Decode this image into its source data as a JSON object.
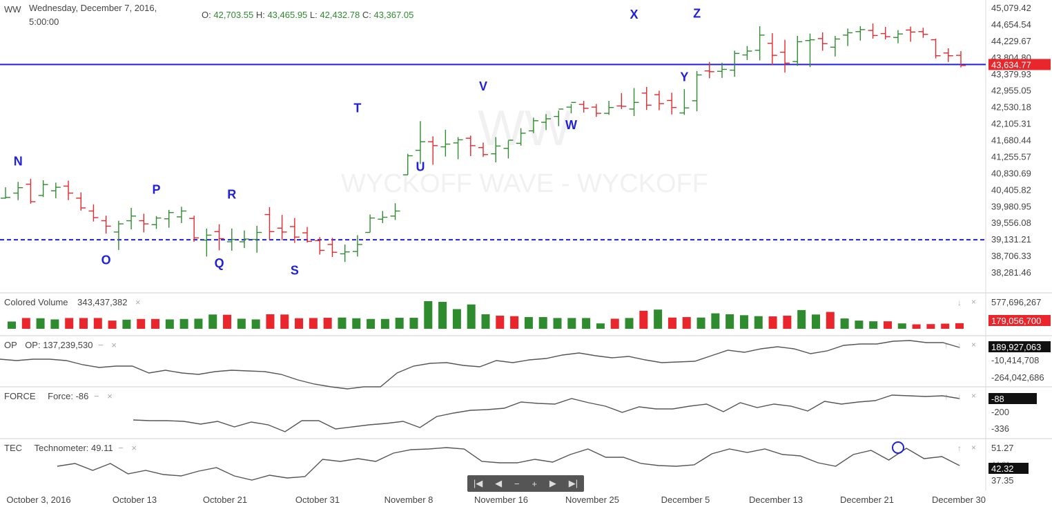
{
  "header": {
    "symbol": "WW",
    "date_line1": "Wednesday, December 7, 2016,",
    "date_line2": "5:00:00",
    "o_label": "O:",
    "o_value": "42,703.55",
    "h_label": "H:",
    "h_value": "43,465.95",
    "l_label": "L:",
    "l_value": "42,432.78",
    "c_label": "C:",
    "c_value": "43,367.05"
  },
  "watermark": {
    "line1": "WW",
    "line2": "WYCKOFF WAVE - WYCKOFF"
  },
  "colors": {
    "up": "#2e8b2e",
    "down": "#e8262b",
    "line": "#1f1fe0",
    "series": "#555555",
    "label_bg": "#e8262b"
  },
  "chart_data": [
    {
      "type": "ohlc",
      "title": "",
      "price_axis_ticks": [
        "45,079.42",
        "44,654.54",
        "44,229.67",
        "43,804.80",
        "43,379.93",
        "42,955.05",
        "42,530.18",
        "42,105.31",
        "41,680.44",
        "41,255.57",
        "40,830.69",
        "40,405.82",
        "39,980.95",
        "39,556.08",
        "39,131.21",
        "38,706.33",
        "38,281.46"
      ],
      "ylim": [
        38000,
        45200
      ],
      "current_price_label": "43,634.77",
      "resistance_line": 43634.77,
      "support_line": 39131.21,
      "wave_labels": [
        {
          "text": "N",
          "bar": 1,
          "price": 41040
        },
        {
          "text": "O",
          "bar": 8,
          "price": 38500
        },
        {
          "text": "P",
          "bar": 12,
          "price": 40310
        },
        {
          "text": "Q",
          "bar": 17,
          "price": 38420
        },
        {
          "text": "R",
          "bar": 18,
          "price": 40190
        },
        {
          "text": "S",
          "bar": 23,
          "price": 38240
        },
        {
          "text": "T",
          "bar": 28,
          "price": 42410
        },
        {
          "text": "U",
          "bar": 33,
          "price": 40900
        },
        {
          "text": "V",
          "bar": 38,
          "price": 42970
        },
        {
          "text": "W",
          "bar": 45,
          "price": 41970
        },
        {
          "text": "X",
          "bar": 50,
          "price": 44810
        },
        {
          "text": "Y",
          "bar": 54,
          "price": 43210
        },
        {
          "text": "Z",
          "bar": 55,
          "price": 44840
        }
      ],
      "bars": [
        {
          "o": 40200,
          "h": 40480,
          "l": 40190,
          "c": 40220
        },
        {
          "o": 40330,
          "h": 40620,
          "l": 40150,
          "c": 40470
        },
        {
          "o": 40560,
          "h": 40700,
          "l": 40060,
          "c": 40110
        },
        {
          "o": 40270,
          "h": 40660,
          "l": 40230,
          "c": 40550
        },
        {
          "o": 40390,
          "h": 40600,
          "l": 40200,
          "c": 40480
        },
        {
          "o": 40510,
          "h": 40650,
          "l": 40150,
          "c": 40330
        },
        {
          "o": 40200,
          "h": 40350,
          "l": 39880,
          "c": 39950
        },
        {
          "o": 39870,
          "h": 40040,
          "l": 39600,
          "c": 39700
        },
        {
          "o": 39620,
          "h": 39750,
          "l": 39290,
          "c": 39480
        },
        {
          "o": 39330,
          "h": 39620,
          "l": 38870,
          "c": 39540
        },
        {
          "o": 39620,
          "h": 39950,
          "l": 39400,
          "c": 39740
        },
        {
          "o": 39620,
          "h": 39800,
          "l": 39320,
          "c": 39540
        },
        {
          "o": 39520,
          "h": 39740,
          "l": 39410,
          "c": 39690
        },
        {
          "o": 39670,
          "h": 39900,
          "l": 39440,
          "c": 39830
        },
        {
          "o": 39720,
          "h": 39980,
          "l": 39560,
          "c": 39870
        },
        {
          "o": 39680,
          "h": 39750,
          "l": 39080,
          "c": 39180
        },
        {
          "o": 39120,
          "h": 39420,
          "l": 38700,
          "c": 39250
        },
        {
          "o": 39340,
          "h": 39530,
          "l": 38860,
          "c": 39160
        },
        {
          "o": 39080,
          "h": 39420,
          "l": 38850,
          "c": 39140
        },
        {
          "o": 39080,
          "h": 39370,
          "l": 38920,
          "c": 39150
        },
        {
          "o": 39140,
          "h": 39490,
          "l": 38800,
          "c": 39320
        },
        {
          "o": 39780,
          "h": 39970,
          "l": 39130,
          "c": 39340
        },
        {
          "o": 39430,
          "h": 39770,
          "l": 39120,
          "c": 39330
        },
        {
          "o": 39470,
          "h": 39690,
          "l": 39050,
          "c": 39200
        },
        {
          "o": 39310,
          "h": 39460,
          "l": 39060,
          "c": 39090
        },
        {
          "o": 39110,
          "h": 39200,
          "l": 38750,
          "c": 38860
        },
        {
          "o": 39010,
          "h": 39180,
          "l": 38690,
          "c": 38810
        },
        {
          "o": 38770,
          "h": 39010,
          "l": 38560,
          "c": 38820
        },
        {
          "o": 38830,
          "h": 39250,
          "l": 38700,
          "c": 39010
        },
        {
          "o": 39320,
          "h": 39780,
          "l": 39320,
          "c": 39690
        },
        {
          "o": 39660,
          "h": 39870,
          "l": 39560,
          "c": 39710
        },
        {
          "o": 39740,
          "h": 40070,
          "l": 39640,
          "c": 39870
        },
        {
          "o": 40800,
          "h": 41340,
          "l": 40800,
          "c": 41290
        },
        {
          "o": 41430,
          "h": 42180,
          "l": 41080,
          "c": 41650
        },
        {
          "o": 41650,
          "h": 41790,
          "l": 41060,
          "c": 41550
        },
        {
          "o": 41520,
          "h": 41960,
          "l": 41270,
          "c": 41590
        },
        {
          "o": 41620,
          "h": 41770,
          "l": 41200,
          "c": 41700
        },
        {
          "o": 41740,
          "h": 41810,
          "l": 41280,
          "c": 41550
        },
        {
          "o": 41500,
          "h": 41630,
          "l": 41260,
          "c": 41320
        },
        {
          "o": 41340,
          "h": 41770,
          "l": 41120,
          "c": 41540
        },
        {
          "o": 41480,
          "h": 41680,
          "l": 41220,
          "c": 41690
        },
        {
          "o": 41610,
          "h": 42000,
          "l": 41550,
          "c": 41870
        },
        {
          "o": 41930,
          "h": 42270,
          "l": 41870,
          "c": 42190
        },
        {
          "o": 42150,
          "h": 42360,
          "l": 41950,
          "c": 42240
        },
        {
          "o": 42300,
          "h": 42450,
          "l": 42050,
          "c": 42490
        },
        {
          "o": 42540,
          "h": 42620,
          "l": 42380,
          "c": 42660
        },
        {
          "o": 42610,
          "h": 42700,
          "l": 42400,
          "c": 42510
        },
        {
          "o": 42540,
          "h": 42620,
          "l": 42290,
          "c": 42380
        },
        {
          "o": 42380,
          "h": 42700,
          "l": 42340,
          "c": 42530
        },
        {
          "o": 42570,
          "h": 42900,
          "l": 42490,
          "c": 42560
        },
        {
          "o": 42490,
          "h": 43030,
          "l": 42310,
          "c": 42660
        },
        {
          "o": 42900,
          "h": 43060,
          "l": 42470,
          "c": 42590
        },
        {
          "o": 42860,
          "h": 42960,
          "l": 42460,
          "c": 42630
        },
        {
          "o": 42710,
          "h": 42910,
          "l": 42350,
          "c": 42530
        },
        {
          "o": 42390,
          "h": 43000,
          "l": 42340,
          "c": 42520
        },
        {
          "o": 42703.55,
          "h": 43465.95,
          "l": 42432.78,
          "c": 43367.05
        },
        {
          "o": 43470,
          "h": 43700,
          "l": 43280,
          "c": 43450
        },
        {
          "o": 43460,
          "h": 43680,
          "l": 43290,
          "c": 43510
        },
        {
          "o": 43490,
          "h": 43990,
          "l": 43320,
          "c": 43920
        },
        {
          "o": 43880,
          "h": 44110,
          "l": 43750,
          "c": 43980
        },
        {
          "o": 44000,
          "h": 44620,
          "l": 43740,
          "c": 44390
        },
        {
          "o": 44180,
          "h": 44440,
          "l": 43620,
          "c": 43870
        },
        {
          "o": 43950,
          "h": 44270,
          "l": 43430,
          "c": 43670
        },
        {
          "o": 43710,
          "h": 44370,
          "l": 43600,
          "c": 44220
        },
        {
          "o": 44250,
          "h": 44430,
          "l": 43570,
          "c": 44270
        },
        {
          "o": 44300,
          "h": 44460,
          "l": 43990,
          "c": 44170
        },
        {
          "o": 44080,
          "h": 44370,
          "l": 43840,
          "c": 44290
        },
        {
          "o": 44390,
          "h": 44560,
          "l": 44110,
          "c": 44450
        },
        {
          "o": 44480,
          "h": 44620,
          "l": 44250,
          "c": 44530
        },
        {
          "o": 44510,
          "h": 44690,
          "l": 44300,
          "c": 44380
        },
        {
          "o": 44430,
          "h": 44600,
          "l": 44280,
          "c": 44350
        },
        {
          "o": 44330,
          "h": 44520,
          "l": 44180,
          "c": 44420
        },
        {
          "o": 44520,
          "h": 44610,
          "l": 44220,
          "c": 44470
        },
        {
          "o": 44480,
          "h": 44580,
          "l": 44320,
          "c": 44410
        },
        {
          "o": 44270,
          "h": 44300,
          "l": 43790,
          "c": 43860
        },
        {
          "o": 43930,
          "h": 44050,
          "l": 43700,
          "c": 43860
        },
        {
          "o": 43870,
          "h": 43980,
          "l": 43560,
          "c": 43610
        }
      ]
    },
    {
      "type": "bar",
      "title": "Colored Volume",
      "value_label": "343,437,382",
      "axis_top_label": "577,696,267",
      "last_value_label": "179,056,700",
      "ylim": [
        0,
        577696267
      ],
      "values": [
        155,
        230,
        225,
        200,
        230,
        230,
        230,
        175,
        195,
        210,
        210,
        200,
        210,
        215,
        305,
        300,
        215,
        200,
        310,
        305,
        225,
        230,
        235,
        240,
        225,
        210,
        210,
        235,
        235,
        590,
        575,
        420,
        520,
        310,
        280,
        270,
        250,
        250,
        230,
        230,
        230,
        115,
        215,
        230,
        385,
        410,
        240,
        250,
        240,
        330,
        310,
        290,
        270,
        265,
        280,
        400,
        305,
        360,
        220,
        175,
        160,
        160,
        115,
        95,
        100,
        110,
        120
      ],
      "up_down": [
        1,
        0,
        1,
        1,
        0,
        0,
        0,
        0,
        1,
        0,
        0,
        1,
        1,
        1,
        1,
        0,
        1,
        1,
        0,
        0,
        0,
        0,
        0,
        1,
        1,
        1,
        1,
        1,
        1,
        1,
        1,
        1,
        1,
        1,
        0,
        0,
        1,
        1,
        1,
        1,
        1,
        1,
        0,
        1,
        0,
        1,
        0,
        0,
        1,
        1,
        1,
        1,
        1,
        0,
        0,
        1,
        1,
        0,
        1,
        1,
        1,
        0,
        1,
        0,
        0,
        0,
        0
      ]
    },
    {
      "type": "line",
      "title": "OP",
      "series_name": "OP",
      "value_label": "OP: 137,239,530",
      "axis_labels": [
        "-10,414,708",
        "-264,042,686"
      ],
      "last_value_label": "189,927,063",
      "values": [
        520,
        522,
        520,
        520,
        522,
        528,
        532,
        530,
        530,
        540,
        536,
        540,
        542,
        538,
        536,
        537,
        538,
        542,
        550,
        556,
        560,
        563,
        560,
        560,
        540,
        530,
        526,
        525,
        529,
        531,
        522,
        525,
        521,
        519,
        514,
        511,
        515,
        518,
        516,
        521,
        525,
        524,
        523,
        515,
        507,
        510,
        505,
        502,
        505,
        512,
        508,
        500,
        498,
        498,
        494,
        493,
        496,
        496,
        503
      ]
    },
    {
      "type": "line",
      "title": "FORCE",
      "series_name": "Force",
      "value_label": "Force: -86",
      "axis_labels": [
        "-200",
        "-336"
      ],
      "last_value_label": "-88",
      "values": [
        608,
        609,
        609,
        610,
        614,
        610,
        618,
        611,
        615,
        625,
        609,
        609,
        621,
        618,
        615,
        613,
        610,
        619,
        603,
        598,
        594,
        593,
        591,
        582,
        584,
        585,
        577,
        583,
        588,
        597,
        589,
        592,
        592,
        588,
        585,
        596,
        583,
        590,
        585,
        588,
        595,
        581,
        585,
        582,
        580,
        572,
        573,
        574,
        573,
        577
      ]
    },
    {
      "type": "line",
      "title": "TEC",
      "series_name": "Technometer",
      "value_label": "Technometer: 49.11",
      "axis_labels": [
        "51.27",
        "44.81",
        "37.35"
      ],
      "last_value_label": "42.32",
      "values": [
        675,
        671,
        681,
        671,
        686,
        681,
        687,
        689,
        682,
        677,
        689,
        695,
        688,
        692,
        690,
        665,
        668,
        664,
        668,
        656,
        651,
        650,
        648,
        650,
        668,
        670,
        670,
        665,
        669,
        658,
        650,
        662,
        662,
        671,
        674,
        675,
        673,
        657,
        650,
        655,
        650,
        658,
        660,
        670,
        675,
        658,
        652,
        666,
        649,
        664,
        661,
        674
      ]
    }
  ],
  "x_axis_labels": [
    "October 3, 2016",
    "October 13",
    "October 21",
    "October 31",
    "November 8",
    "November 16",
    "November 25",
    "December 5",
    "December 13",
    "December 21",
    "December 30"
  ],
  "panes": {
    "volume": {
      "name": "Colored Volume",
      "value": "343,437,382"
    },
    "op": {
      "short": "OP",
      "value": "OP: 137,239,530"
    },
    "force": {
      "short": "FORCE",
      "value": "Force: -86"
    },
    "tec": {
      "short": "TEC",
      "value": "Technometer: 49.11"
    }
  },
  "controls": {
    "close": "×",
    "down": "↓",
    "up": "↑",
    "minus": "−"
  },
  "nav": {
    "first": "|◀",
    "prev": "◀",
    "zoom_out": "−",
    "zoom_in": "+",
    "next": "▶",
    "last": "▶|"
  }
}
